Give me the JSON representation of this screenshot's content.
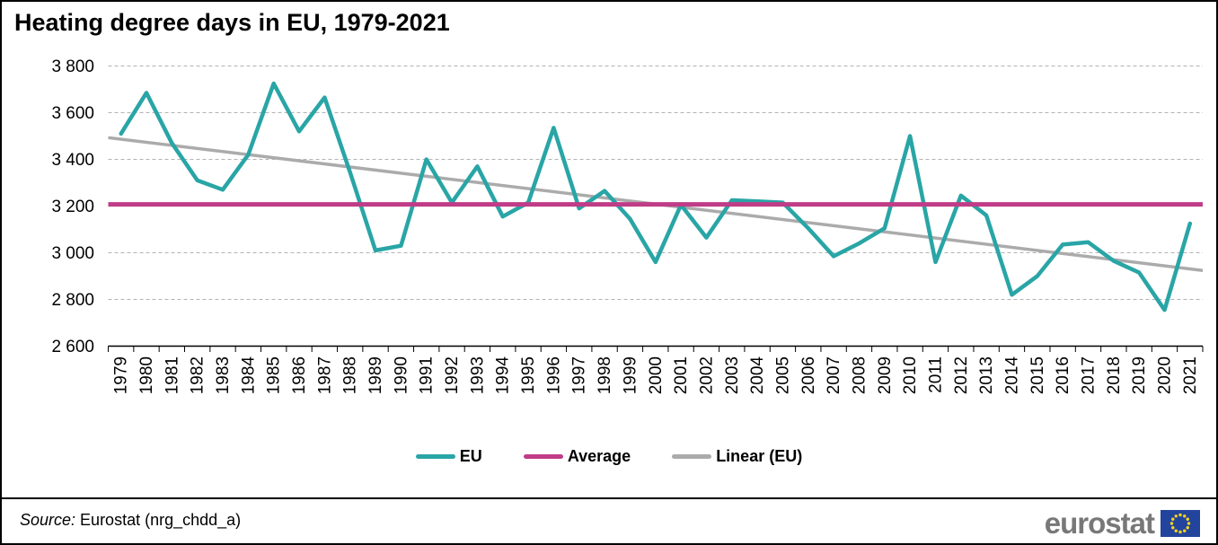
{
  "title": "Heating degree days in EU, 1979-2021",
  "source": {
    "label": "Source:",
    "rest": "Eurostat (nrg_chdd_a)"
  },
  "logo": {
    "text": "eurostat"
  },
  "colors": {
    "eu_line": "#29A5A6",
    "average_line": "#C03C87",
    "linear_line": "#ABABAB",
    "grid": "#B3B3B3",
    "axis": "#000000",
    "flag_blue": "#23449C",
    "flag_star": "#FFD617",
    "logo_gray": "#787878"
  },
  "legend": [
    {
      "label": "EU",
      "color": "#29A5A6"
    },
    {
      "label": "Average",
      "color": "#C03C87"
    },
    {
      "label": "Linear (EU)",
      "color": "#ABABAB"
    }
  ],
  "chart_data": {
    "type": "line",
    "title": "Heating degree days in EU, 1979-2021",
    "xlabel": "",
    "ylabel": "",
    "ylim": [
      2600,
      3800
    ],
    "yticks": [
      2600,
      2800,
      3000,
      3200,
      3400,
      3600,
      3800
    ],
    "ytick_labels": [
      "2 600",
      "2 800",
      "3 000",
      "3 200",
      "3 400",
      "3 600",
      "3 800"
    ],
    "grid": "horizontal-dashed",
    "legend_position": "bottom-center",
    "categories": [
      "1979",
      "1980",
      "1981",
      "1982",
      "1983",
      "1984",
      "1985",
      "1986",
      "1987",
      "1988",
      "1989",
      "1990",
      "1991",
      "1992",
      "1993",
      "1994",
      "1995",
      "1996",
      "1997",
      "1998",
      "1999",
      "2000",
      "2001",
      "2002",
      "2003",
      "2004",
      "2005",
      "2006",
      "2007",
      "2008",
      "2009",
      "2010",
      "2011",
      "2012",
      "2013",
      "2014",
      "2015",
      "2016",
      "2017",
      "2018",
      "2019",
      "2020",
      "2021"
    ],
    "series": [
      {
        "name": "EU",
        "type": "line",
        "color": "#29A5A6",
        "values": [
          3510,
          3685,
          3470,
          3310,
          3270,
          3420,
          3725,
          3520,
          3665,
          3345,
          3010,
          3030,
          3400,
          3215,
          3370,
          3155,
          3215,
          3535,
          3190,
          3265,
          3145,
          2960,
          3205,
          3065,
          3225,
          3220,
          3215,
          3105,
          2985,
          3040,
          3105,
          3500,
          2960,
          3245,
          3160,
          2820,
          2900,
          3035,
          3045,
          2965,
          2915,
          2755,
          3125
        ]
      },
      {
        "name": "Average",
        "type": "constant-line",
        "color": "#C03C87",
        "value": 3207
      },
      {
        "name": "Linear (EU)",
        "type": "trend-line",
        "color": "#ABABAB",
        "start": 3493,
        "end": 2924
      }
    ]
  }
}
